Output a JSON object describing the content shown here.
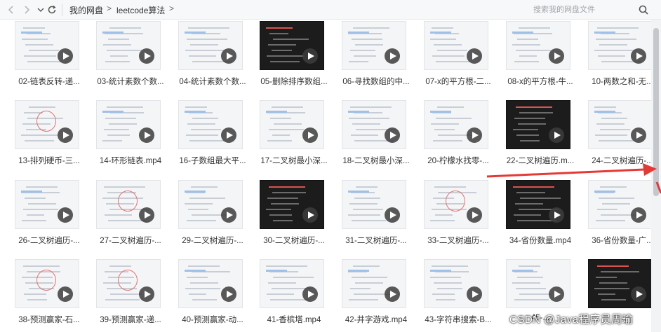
{
  "breadcrumb": {
    "root": "我的网盘",
    "folder": "leetcode算法",
    "sep1": ">",
    "sep2": ">"
  },
  "search": {
    "placeholder": "搜索我的网盘文件"
  },
  "files": [
    "02-链表反转-递...",
    "03-统计素数个数...",
    "04-统计素数个数...",
    "05-删除排序数组...",
    "06-寻找数组的中...",
    "07-x的平方根-二...",
    "08-x的平方根-牛...",
    "10-两数之和-无...",
    "13-排列硬币-三...",
    "14-环形链表.mp4",
    "16-子数组最大平...",
    "17-二叉树最小深...",
    "18-二叉树最小深...",
    "20-柠檬水找零-...",
    "22-二叉树遍历.m...",
    "24-二叉树遍历-...",
    "26-二叉树遍历-...",
    "27-二叉树遍历-...",
    "29-二叉树遍历-...",
    "30-二叉树遍历-...",
    "31-二叉树遍历-...",
    "33-二叉树遍历-...",
    "34-省份数量.mp4",
    "36-省份数量-广...",
    "38-预测赢家-石...",
    "39-预测赢家-递...",
    "40-预测赢家-动...",
    "41-香槟塔.mp4",
    "42-井字游戏.mp4",
    "43-字符串搜索-B...",
    "45-...",
    "..."
  ],
  "thumb_styles": [
    "code",
    "code",
    "code",
    "dark",
    "code",
    "code",
    "code",
    "code",
    "sketch",
    "code",
    "code",
    "code",
    "code",
    "code",
    "dark",
    "code",
    "code",
    "sketch",
    "code",
    "dark",
    "code",
    "sketch",
    "dark",
    "code",
    "sketch",
    "sketch",
    "code",
    "code",
    "code",
    "code",
    "code",
    "dark"
  ],
  "watermark": "CSDN @Java程序员周瑜",
  "colors": {
    "accent_red": "#e53935",
    "play_button": "#3c3c3c"
  }
}
